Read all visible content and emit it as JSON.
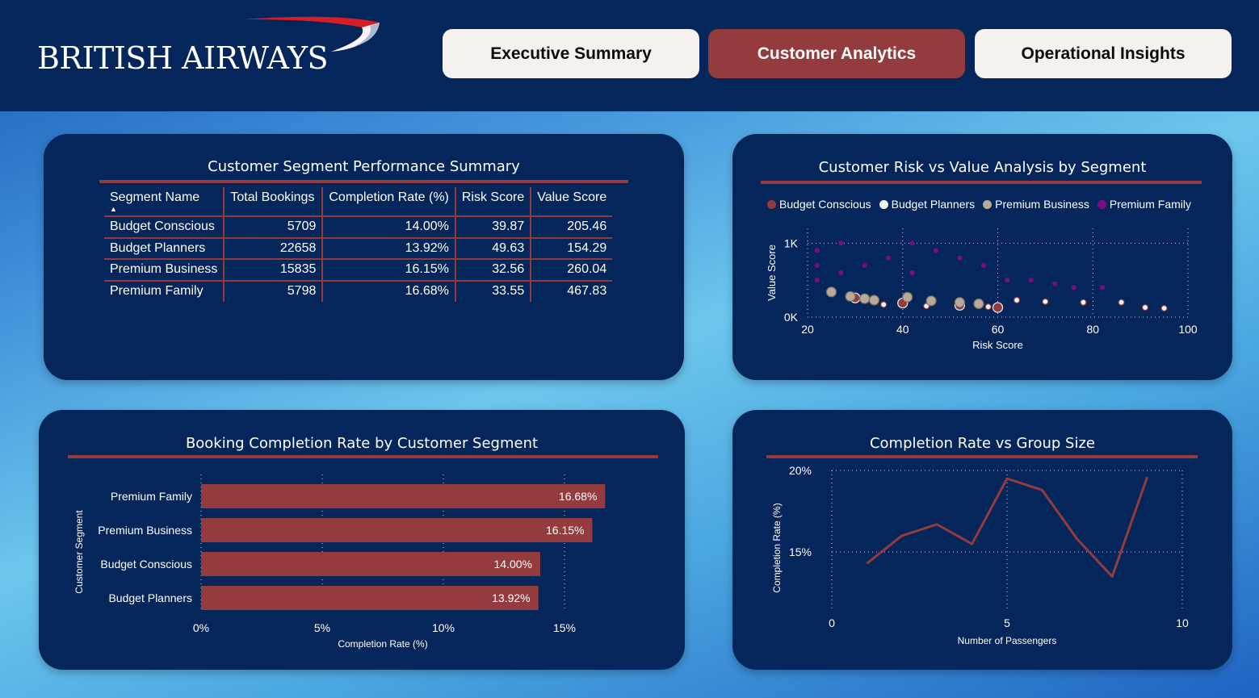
{
  "brand": {
    "name": "BRITISH AIRWAYS"
  },
  "nav": {
    "executive_summary": "Executive Summary",
    "customer_analytics": "Customer Analytics",
    "operational_insights": "Operational Insights"
  },
  "colors": {
    "accent": "#943c3d",
    "card_bg": "#05265a",
    "premium_family": "#7b0d82",
    "premium_business": "#b9a99b",
    "budget_planners": "#f2f2f2",
    "budget_conscious": "#943c3d"
  },
  "summary_table": {
    "title": "Customer Segment Performance Summary",
    "columns": [
      "Segment Name",
      "Total Bookings",
      "Completion Rate (%)",
      "Risk Score",
      "Value Score"
    ],
    "sort_indicator": "▲",
    "rows": [
      [
        "Budget Conscious",
        "5709",
        "14.00%",
        "39.87",
        "205.46"
      ],
      [
        "Budget Planners",
        "22658",
        "13.92%",
        "49.63",
        "154.29"
      ],
      [
        "Premium Business",
        "15835",
        "16.15%",
        "32.56",
        "260.04"
      ],
      [
        "Premium Family",
        "5798",
        "16.68%",
        "33.55",
        "467.83"
      ]
    ]
  },
  "chart_data": [
    {
      "type": "scatter",
      "title": "Customer Risk vs Value Analysis by Segment",
      "xlabel": "Risk Score",
      "ylabel": "Value Score",
      "xlim": [
        20,
        100
      ],
      "ylim": [
        0,
        1200
      ],
      "xticks": [
        "20",
        "40",
        "60",
        "80",
        "100"
      ],
      "yticks": [
        "0K",
        "1K"
      ],
      "grid": true,
      "legend_position": "top",
      "series": [
        {
          "name": "Budget Conscious",
          "points": [
            [
              30,
              260
            ],
            [
              40,
              190
            ],
            [
              52,
              160
            ],
            [
              60,
              130
            ]
          ]
        },
        {
          "name": "Budget Planners",
          "points": [
            [
              36,
              170
            ],
            [
              45,
              150
            ],
            [
              58,
              140
            ],
            [
              64,
              230
            ],
            [
              70,
              210
            ],
            [
              78,
              200
            ],
            [
              86,
              200
            ],
            [
              91,
              130
            ],
            [
              95,
              120
            ]
          ]
        },
        {
          "name": "Premium Business",
          "points": [
            [
              25,
              340
            ],
            [
              29,
              280
            ],
            [
              32,
              250
            ],
            [
              34,
              230
            ],
            [
              41,
              270
            ],
            [
              46,
              220
            ],
            [
              52,
              200
            ],
            [
              56,
              180
            ]
          ]
        },
        {
          "name": "Premium Family",
          "points": [
            [
              22,
              900
            ],
            [
              22,
              700
            ],
            [
              22,
              500
            ],
            [
              27,
              1000
            ],
            [
              27,
              600
            ],
            [
              32,
              700
            ],
            [
              37,
              800
            ],
            [
              42,
              1000
            ],
            [
              42,
              600
            ],
            [
              47,
              900
            ],
            [
              52,
              800
            ],
            [
              57,
              700
            ],
            [
              62,
              500
            ],
            [
              67,
              500
            ],
            [
              72,
              450
            ],
            [
              76,
              400
            ],
            [
              82,
              400
            ]
          ]
        }
      ]
    },
    {
      "type": "bar",
      "orientation": "horizontal",
      "title": "Booking Completion Rate by Customer Segment",
      "xlabel": "Completion Rate (%)",
      "ylabel": "Customer Segment",
      "xlim": [
        0,
        17
      ],
      "xticks": [
        "0%",
        "5%",
        "10%",
        "15%"
      ],
      "categories": [
        "Premium Family",
        "Premium Business",
        "Budget Conscious",
        "Budget Planners"
      ],
      "values": [
        16.68,
        16.15,
        14.0,
        13.92
      ],
      "data_labels": [
        "16.68%",
        "16.15%",
        "14.00%",
        "13.92%"
      ]
    },
    {
      "type": "line",
      "title": "Completion Rate vs Group Size",
      "xlabel": "Number of Passengers",
      "ylabel": "Completion Rate (%)",
      "xlim": [
        0,
        10
      ],
      "ylim": [
        11.5,
        20
      ],
      "xticks": [
        "0",
        "5",
        "10"
      ],
      "yticks": [
        "15%",
        "20%"
      ],
      "x": [
        1,
        2,
        3,
        4,
        5,
        6,
        7,
        8,
        9
      ],
      "series": [
        {
          "values": [
            14.3,
            16.0,
            16.7,
            15.5,
            19.5,
            18.8,
            15.8,
            13.5,
            19.6
          ]
        }
      ]
    }
  ]
}
